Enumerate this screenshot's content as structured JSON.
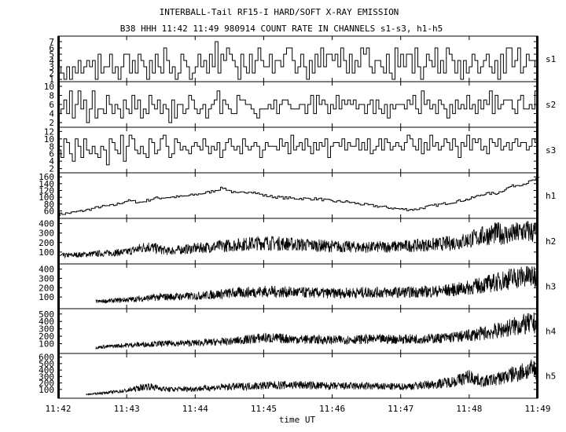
{
  "title": "INTERBALL-Tail RF15-I HARD/SOFT X-RAY EMISSION",
  "subtitle": "B38 HHH 11:42 11:49 980914  COUNT RATE IN CHANNELS s1-s3, h1-h5",
  "xlabel": "time UT",
  "chart_data": [
    {
      "type": "line",
      "channel": "s1",
      "yticks": [
        "1",
        "2",
        "3",
        "4",
        "5",
        "6",
        "7"
      ],
      "ylim": [
        1,
        7.5
      ],
      "values": [
        3,
        2,
        1,
        3,
        1,
        3,
        2,
        4,
        2,
        3,
        4,
        3,
        4,
        1,
        5,
        2,
        3,
        3,
        5,
        2,
        3,
        1,
        3,
        5,
        5,
        2,
        4,
        2,
        5,
        4,
        3,
        1,
        4,
        2,
        5,
        3,
        2,
        6,
        4,
        2,
        3,
        1,
        2,
        5,
        4,
        3,
        1,
        2,
        3,
        5,
        3,
        4,
        2,
        5,
        3,
        7,
        2,
        5,
        4,
        6,
        5,
        4,
        3,
        1,
        5,
        3,
        2,
        5,
        2,
        4,
        6,
        4,
        3,
        3,
        5,
        2,
        4,
        4,
        3,
        5,
        6,
        6,
        4,
        2,
        3,
        5,
        3,
        1,
        4,
        2,
        5,
        3,
        6,
        3,
        5,
        5,
        4,
        5,
        3,
        6,
        4,
        2,
        5,
        2,
        4,
        3,
        6,
        5,
        6,
        3,
        2,
        4,
        4,
        3,
        2,
        5,
        2,
        1,
        6,
        3,
        5,
        3,
        5,
        5,
        2,
        6,
        3,
        1,
        3,
        5,
        4,
        3,
        6,
        2,
        4,
        2,
        6,
        5,
        4,
        2,
        4,
        1,
        4,
        2,
        3,
        5,
        4,
        2,
        3,
        4,
        5,
        3,
        2,
        4,
        1,
        5,
        2,
        6,
        6,
        3,
        4,
        6,
        2,
        3,
        5,
        4,
        4,
        3
      ]
    },
    {
      "type": "line",
      "channel": "s2",
      "yticks": [
        "2",
        "4",
        "6",
        "8",
        "10"
      ],
      "ylim": [
        1.5,
        10.5
      ],
      "values": [
        4,
        5,
        7,
        4,
        9,
        3,
        6,
        9,
        5,
        7,
        2,
        5,
        9,
        3,
        5,
        5,
        4,
        8,
        6,
        4,
        6,
        5,
        3,
        7,
        5,
        4,
        8,
        5,
        7,
        3,
        5,
        4,
        8,
        6,
        5,
        7,
        4,
        6,
        5,
        2,
        7,
        3,
        6,
        6,
        4,
        5,
        8,
        7,
        5,
        4,
        5,
        6,
        3,
        5,
        6,
        7,
        9,
        4,
        7,
        6,
        5,
        4,
        4,
        8,
        7,
        7,
        6,
        6,
        5,
        4,
        3,
        5,
        5,
        5,
        6,
        5,
        7,
        4,
        6,
        7,
        7,
        6,
        5,
        5,
        5,
        6,
        6,
        4,
        6,
        8,
        4,
        8,
        6,
        7,
        6,
        4,
        6,
        5,
        8,
        5,
        7,
        6,
        7,
        6,
        7,
        5,
        6,
        6,
        4,
        6,
        7,
        4,
        7,
        5,
        4,
        6,
        3,
        6,
        5,
        6,
        6,
        6,
        5,
        7,
        6,
        8,
        5,
        4,
        9,
        6,
        7,
        5,
        6,
        4,
        7,
        6,
        5,
        3,
        6,
        4,
        7,
        5,
        6,
        5,
        8,
        5,
        6,
        4,
        7,
        5,
        7,
        6,
        9,
        4,
        8,
        5,
        6,
        7,
        7,
        7,
        5,
        4,
        7,
        8,
        5,
        5,
        6,
        5,
        9
      ]
    },
    {
      "type": "line",
      "channel": "s3",
      "yticks": [
        "2",
        "4",
        "6",
        "8",
        "10",
        "12"
      ],
      "ylim": [
        1.5,
        12.5
      ],
      "values": [
        7,
        5,
        10,
        9,
        6,
        4,
        10,
        8,
        5,
        10,
        7,
        6,
        8,
        6,
        5,
        8,
        7,
        3,
        10,
        9,
        7,
        6,
        11,
        4,
        8,
        11,
        10,
        7,
        6,
        8,
        6,
        5,
        10,
        9,
        6,
        7,
        10,
        11,
        8,
        5,
        6,
        10,
        9,
        7,
        8,
        7,
        6,
        8,
        9,
        8,
        7,
        10,
        8,
        6,
        8,
        7,
        9,
        5,
        7,
        9,
        10,
        8,
        7,
        8,
        6,
        10,
        8,
        7,
        8,
        9,
        8,
        5,
        7,
        9,
        8,
        8,
        8,
        7,
        10,
        8,
        9,
        6,
        11,
        7,
        8,
        9,
        7,
        10,
        8,
        6,
        9,
        7,
        9,
        8,
        10,
        5,
        8,
        9,
        9,
        8,
        10,
        7,
        9,
        8,
        8,
        10,
        7,
        9,
        7,
        10,
        6,
        7,
        8,
        10,
        7,
        10,
        9,
        7,
        8,
        9,
        8,
        7,
        9,
        11,
        10,
        8,
        7,
        10,
        6,
        9,
        7,
        11,
        8,
        9,
        7,
        8,
        10,
        9,
        7,
        10,
        8,
        5,
        9,
        8,
        11,
        7,
        10,
        9,
        10,
        7,
        8,
        6,
        10,
        9,
        8,
        10,
        7,
        8,
        9,
        7,
        9,
        10,
        8,
        9,
        9,
        7,
        8,
        10,
        9
      ]
    },
    {
      "type": "line",
      "channel": "h1",
      "yticks": [
        "60",
        "80",
        "100",
        "120",
        "140",
        "160"
      ],
      "ylim": [
        45,
        165
      ],
      "t": [
        0,
        0.2,
        0.4,
        0.6,
        0.8,
        1.0,
        1.2,
        1.4,
        1.6,
        1.8,
        2.0,
        2.2,
        2.4,
        2.6,
        2.8,
        3.0,
        3.2,
        3.4,
        3.6,
        3.8,
        4.0,
        4.2,
        4.4,
        4.6,
        4.8,
        5.0,
        5.2,
        5.4,
        5.6,
        5.8,
        6.0,
        6.2,
        6.4,
        6.6,
        6.8,
        7.0
      ],
      "values": [
        50,
        55,
        62,
        72,
        76,
        90,
        85,
        97,
        100,
        102,
        108,
        115,
        128,
        110,
        118,
        105,
        100,
        97,
        96,
        95,
        88,
        87,
        80,
        75,
        70,
        65,
        64,
        73,
        80,
        88,
        95,
        110,
        112,
        132,
        140,
        155
      ]
    },
    {
      "type": "line",
      "channel": "h2",
      "yticks": [
        "100",
        "200",
        "300",
        "400"
      ],
      "ylim": [
        0,
        430
      ],
      "t": [
        0,
        0.5,
        1.0,
        1.3,
        1.6,
        2.0,
        2.5,
        3.0,
        3.5,
        4.0,
        4.5,
        5.0,
        5.5,
        5.8,
        6.0,
        6.2,
        6.4,
        6.6,
        6.8,
        7.0
      ],
      "values": [
        60,
        80,
        100,
        160,
        110,
        140,
        170,
        200,
        180,
        160,
        150,
        160,
        180,
        200,
        230,
        270,
        300,
        280,
        320,
        310
      ]
    },
    {
      "type": "line",
      "channel": "h3",
      "yticks": [
        "100",
        "200",
        "300",
        "400"
      ],
      "ylim": [
        0,
        430
      ],
      "t_start": 0.55,
      "t": [
        0.55,
        1.0,
        1.5,
        2.0,
        2.5,
        3.0,
        3.5,
        4.0,
        4.5,
        5.0,
        5.5,
        5.8,
        6.0,
        6.2,
        6.4,
        6.6,
        6.8,
        7.0
      ],
      "values": [
        50,
        70,
        100,
        110,
        140,
        160,
        150,
        140,
        150,
        150,
        160,
        180,
        200,
        230,
        260,
        300,
        320,
        330
      ]
    },
    {
      "type": "line",
      "channel": "h4",
      "yticks": [
        "100",
        "200",
        "300",
        "400",
        "500"
      ],
      "ylim": [
        0,
        540
      ],
      "t_start": 0.55,
      "t": [
        0.55,
        1.0,
        1.5,
        2.0,
        2.5,
        3.0,
        3.5,
        4.0,
        4.5,
        5.0,
        5.5,
        5.8,
        6.0,
        6.2,
        6.4,
        6.6,
        6.8,
        7.0
      ],
      "values": [
        50,
        80,
        100,
        110,
        130,
        180,
        160,
        150,
        160,
        160,
        170,
        190,
        210,
        240,
        270,
        320,
        360,
        380
      ]
    },
    {
      "type": "line",
      "channel": "h5",
      "yticks": [
        "100",
        "200",
        "300",
        "400",
        "500",
        "600"
      ],
      "ylim": [
        0,
        620
      ],
      "t_start": 0.4,
      "t": [
        0.4,
        0.8,
        1.0,
        1.3,
        1.6,
        2.0,
        2.5,
        3.0,
        3.5,
        4.0,
        4.5,
        5.0,
        5.5,
        5.8,
        6.0,
        6.2,
        6.4,
        6.6,
        6.8,
        7.0
      ],
      "values": [
        20,
        60,
        80,
        150,
        100,
        110,
        140,
        160,
        170,
        150,
        150,
        140,
        180,
        230,
        300,
        220,
        260,
        320,
        380,
        420
      ]
    }
  ],
  "xticks": [
    "11:42",
    "11:43",
    "11:44",
    "11:45",
    "11:46",
    "11:47",
    "11:48",
    "11:49"
  ]
}
